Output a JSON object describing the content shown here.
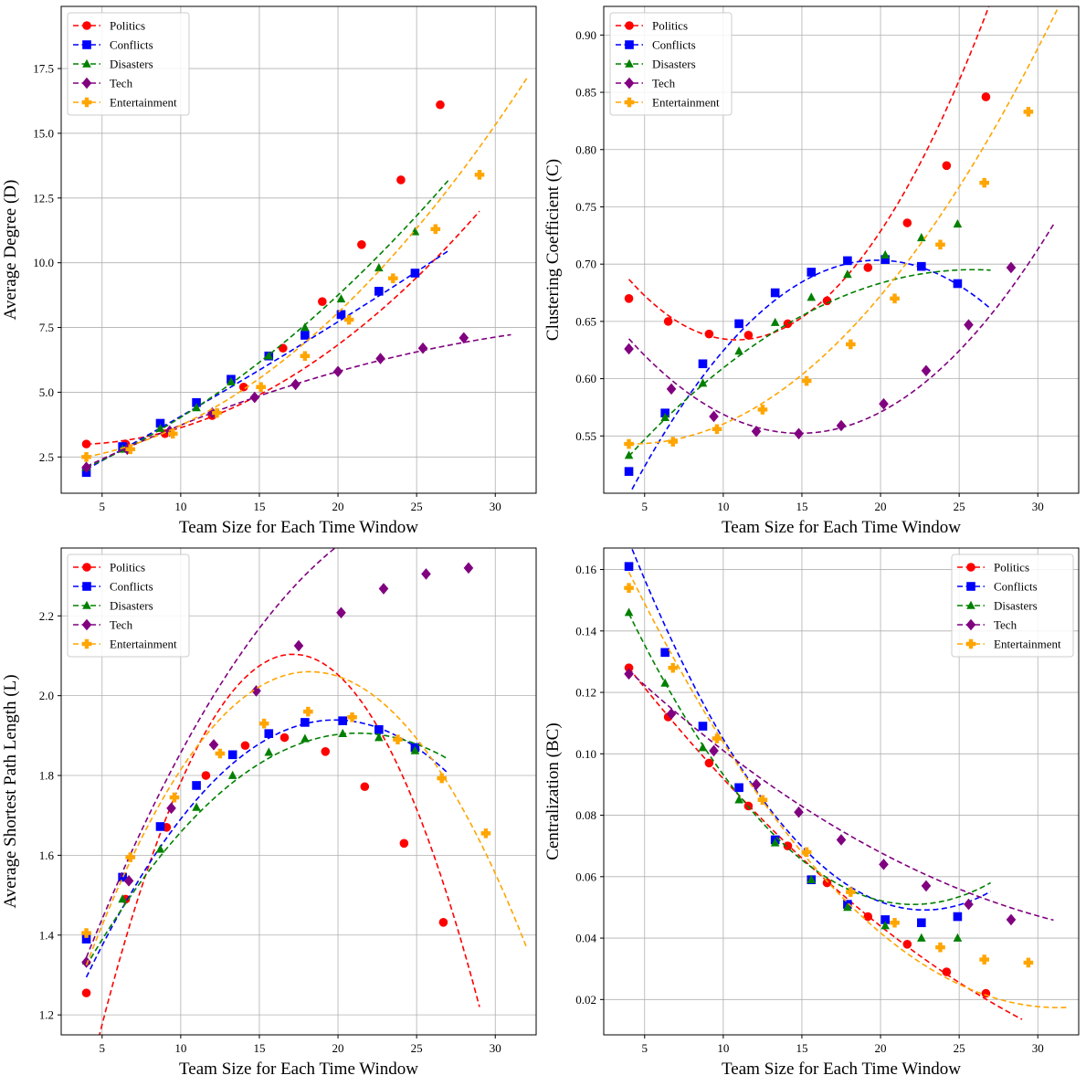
{
  "series_styles": [
    {
      "name": "Politics",
      "color": "#ff0000",
      "marker": "circle"
    },
    {
      "name": "Conflicts",
      "color": "#0000ff",
      "marker": "square"
    },
    {
      "name": "Disasters",
      "color": "#008000",
      "marker": "triangle"
    },
    {
      "name": "Tech",
      "color": "#800080",
      "marker": "diamond"
    },
    {
      "name": "Entertainment",
      "color": "#ffa500",
      "marker": "plus"
    }
  ],
  "chart_data": [
    {
      "type": "line",
      "title": "",
      "xlabel": "Team Size for Each Time Window",
      "ylabel": "Average Degree (D)",
      "xlim": [
        2.4,
        32.6
      ],
      "ylim": [
        1.1,
        19.9
      ],
      "xticks": [
        5,
        10,
        15,
        20,
        25,
        30
      ],
      "yticks": [
        2.5,
        5.0,
        7.5,
        10.0,
        12.5,
        15.0,
        17.5
      ],
      "ytick_labels": [
        "2.5",
        "5.0",
        "7.5",
        "10.0",
        "12.5",
        "15.0",
        "17.5"
      ],
      "legend": "top-left",
      "series": [
        {
          "name": "Politics",
          "x": [
            4,
            6.5,
            9,
            12,
            14,
            16.5,
            19,
            21.5,
            24,
            26.5
          ],
          "y": [
            3.0,
            3.0,
            3.4,
            4.1,
            5.2,
            6.7,
            8.5,
            10.7,
            13.2,
            16.1
          ],
          "fit_x": [
            4,
            29
          ],
          "fit": [
            0.01333,
            -0.08,
            3.1
          ]
        },
        {
          "name": "Conflicts",
          "x": [
            4,
            6.3,
            8.7,
            11,
            13.2,
            15.6,
            17.9,
            20.2,
            22.6,
            24.9
          ],
          "y": [
            1.9,
            2.9,
            3.8,
            4.6,
            5.5,
            6.4,
            7.2,
            8.0,
            8.9,
            9.6
          ],
          "fit_x": [
            4,
            27
          ],
          "fit": [
            0.0015,
            0.32,
            0.72
          ]
        },
        {
          "name": "Disasters",
          "x": [
            4,
            6.3,
            8.7,
            11,
            13.2,
            15.6,
            17.9,
            20.2,
            22.6,
            24.9
          ],
          "y": [
            2.1,
            2.8,
            3.6,
            4.4,
            5.4,
            6.4,
            7.5,
            8.6,
            9.8,
            11.2
          ],
          "fit_x": [
            4,
            27
          ],
          "fit": [
            0.0094,
            0.19,
            1.19
          ]
        },
        {
          "name": "Tech",
          "x": [
            4,
            6.6,
            9.3,
            12,
            14.7,
            17.3,
            20,
            22.7,
            25.4,
            28
          ],
          "y": [
            2.1,
            2.8,
            3.5,
            4.2,
            4.8,
            5.3,
            5.8,
            6.3,
            6.7,
            7.1
          ],
          "fit_x": [
            4,
            31
          ],
          "fit": [
            -0.0037,
            0.318,
            0.92
          ]
        },
        {
          "name": "Entertainment",
          "x": [
            4,
            6.8,
            9.5,
            12.3,
            15.1,
            17.9,
            20.7,
            23.5,
            26.2,
            29
          ],
          "y": [
            2.5,
            2.8,
            3.4,
            4.2,
            5.2,
            6.4,
            7.8,
            9.4,
            11.3,
            13.4
          ],
          "fit_x": [
            4,
            32
          ],
          "fit": [
            0.0145,
            0.0,
            2.27
          ]
        }
      ]
    },
    {
      "type": "line",
      "title": "",
      "xlabel": "Team Size for Each Time Window",
      "ylabel": "Clustering Coefficient (C)",
      "xlim": [
        2.4,
        32.6
      ],
      "ylim": [
        0.5,
        0.925
      ],
      "xticks": [
        5,
        10,
        15,
        20,
        25,
        30
      ],
      "yticks": [
        0.55,
        0.6,
        0.65,
        0.7,
        0.75,
        0.8,
        0.85,
        0.9
      ],
      "ytick_labels": [
        "0.55",
        "0.60",
        "0.65",
        "0.70",
        "0.75",
        "0.80",
        "0.85",
        "0.90"
      ],
      "legend": "top-left",
      "series": [
        {
          "name": "Politics",
          "x": [
            4,
            6.5,
            9.1,
            11.6,
            14.1,
            16.6,
            19.2,
            21.7,
            24.2,
            26.7
          ],
          "y": [
            0.67,
            0.65,
            0.639,
            0.638,
            0.648,
            0.668,
            0.697,
            0.736,
            0.786,
            0.846
          ],
          "fit_x": [
            4,
            29
          ],
          "fit": [
            0.00113,
            -0.0245,
            0.7667
          ]
        },
        {
          "name": "Conflicts",
          "x": [
            4,
            6.3,
            8.7,
            11,
            13.3,
            15.6,
            17.9,
            20.3,
            22.6,
            24.9
          ],
          "y": [
            0.519,
            0.57,
            0.613,
            0.648,
            0.675,
            0.693,
            0.703,
            0.704,
            0.698,
            0.683
          ],
          "fit_x": [
            4.2,
            27
          ],
          "fit": [
            -0.00082,
            0.0325,
            0.3814
          ]
        },
        {
          "name": "Disasters",
          "x": [
            4,
            6.3,
            8.7,
            11,
            13.3,
            15.6,
            17.9,
            20.3,
            22.6,
            24.9
          ],
          "y": [
            0.533,
            0.566,
            0.596,
            0.624,
            0.649,
            0.671,
            0.691,
            0.708,
            0.723,
            0.735
          ],
          "fit_x": [
            4,
            27
          ],
          "fit": [
            -0.00034,
            0.0176,
            0.4674
          ]
        },
        {
          "name": "Tech",
          "x": [
            4,
            6.7,
            9.4,
            12.1,
            14.8,
            17.5,
            20.2,
            22.9,
            25.6,
            28.3
          ],
          "y": [
            0.626,
            0.591,
            0.567,
            0.554,
            0.552,
            0.559,
            0.578,
            0.607,
            0.647,
            0.697
          ],
          "fit_x": [
            4,
            31
          ],
          "fit": [
            0.0007,
            -0.0208,
            0.7068
          ]
        },
        {
          "name": "Entertainment",
          "x": [
            4,
            6.8,
            9.6,
            12.5,
            15.3,
            18.1,
            20.9,
            23.8,
            26.6,
            29.4
          ],
          "y": [
            0.543,
            0.545,
            0.556,
            0.573,
            0.598,
            0.63,
            0.67,
            0.717,
            0.771,
            0.833
          ],
          "fit_x": [
            4,
            32
          ],
          "fit": [
            0.00052,
            -0.0044,
            0.5524
          ]
        }
      ]
    },
    {
      "type": "line",
      "title": "",
      "xlabel": "Team Size for Each Time Window",
      "ylabel": "Average Shortest Path Length (L)",
      "xlim": [
        2.4,
        32.6
      ],
      "ylim": [
        1.15,
        2.37
      ],
      "xticks": [
        5,
        10,
        15,
        20,
        25,
        30
      ],
      "yticks": [
        1.2,
        1.4,
        1.6,
        1.8,
        2.0,
        2.2
      ],
      "ytick_labels": [
        "1.2",
        "1.4",
        "1.6",
        "1.8",
        "2.0",
        "2.2"
      ],
      "legend": "top-left",
      "series": [
        {
          "name": "Politics",
          "x": [
            4,
            6.5,
            9.1,
            11.6,
            14.1,
            16.6,
            19.2,
            21.7,
            24.2,
            26.7
          ],
          "y": [
            1.255,
            1.49,
            1.67,
            1.8,
            1.875,
            1.895,
            1.86,
            1.772,
            1.63,
            1.432
          ],
          "fit_x": [
            4,
            29
          ],
          "fit": [
            -0.00629,
            0.2157,
            0.2546
          ]
        },
        {
          "name": "Conflicts",
          "x": [
            4,
            6.3,
            8.7,
            11,
            13.3,
            15.6,
            17.9,
            20.3,
            22.6,
            24.9
          ],
          "y": [
            1.39,
            1.545,
            1.672,
            1.775,
            1.852,
            1.905,
            1.933,
            1.937,
            1.915,
            1.87
          ],
          "fit_x": [
            4,
            27
          ],
          "fit": [
            -0.00258,
            0.1022,
            0.927
          ]
        },
        {
          "name": "Disasters",
          "x": [
            4,
            6.3,
            8.7,
            11,
            13.3,
            15.6,
            17.9,
            20.3,
            22.6,
            24.9
          ],
          "y": [
            1.335,
            1.49,
            1.615,
            1.72,
            1.8,
            1.858,
            1.892,
            1.905,
            1.895,
            1.862
          ],
          "fit_x": [
            4,
            27
          ],
          "fit": [
            -0.00196,
            0.0833,
            1.021
          ]
        },
        {
          "name": "Tech",
          "x": [
            4,
            6.7,
            9.4,
            12.1,
            14.8,
            17.5,
            20.2,
            22.9,
            25.6,
            28.3
          ],
          "y": [
            1.332,
            1.536,
            1.718,
            1.877,
            2.012,
            2.125,
            2.208,
            2.268,
            2.305,
            2.32
          ],
          "fit_x": [
            4,
            31
          ],
          "fit": [
            -0.0021,
            0.1149,
            0.918
          ]
        },
        {
          "name": "Entertainment",
          "x": [
            4,
            6.8,
            9.6,
            12.5,
            15.3,
            18.1,
            20.9,
            23.8,
            26.6,
            29.4
          ],
          "y": [
            1.405,
            1.595,
            1.745,
            1.855,
            1.93,
            1.96,
            1.946,
            1.89,
            1.793,
            1.655
          ],
          "fit_x": [
            4,
            32
          ],
          "fit": [
            -0.00364,
            0.1326,
            0.8525
          ]
        }
      ]
    },
    {
      "type": "line",
      "title": "",
      "xlabel": "Team Size for Each Time Window",
      "ylabel": "Centralization (BC)",
      "xlim": [
        2.4,
        32.6
      ],
      "ylim": [
        0.0085,
        0.167
      ],
      "xticks": [
        5,
        10,
        15,
        20,
        25,
        30
      ],
      "yticks": [
        0.02,
        0.04,
        0.06,
        0.08,
        0.1,
        0.12,
        0.14,
        0.16
      ],
      "ytick_labels": [
        "0.02",
        "0.04",
        "0.06",
        "0.08",
        "0.10",
        "0.12",
        "0.14",
        "0.16"
      ],
      "legend": "top-right",
      "series": [
        {
          "name": "Politics",
          "x": [
            4,
            6.5,
            9.1,
            11.6,
            14.1,
            16.6,
            19.2,
            21.7,
            24.2,
            26.7
          ],
          "y": [
            0.128,
            0.112,
            0.097,
            0.083,
            0.07,
            0.058,
            0.047,
            0.038,
            0.029,
            0.022
          ],
          "fit_x": [
            4,
            29
          ],
          "fit": [
            7.5e-05,
            -0.00705,
            0.1549
          ]
        },
        {
          "name": "Conflicts",
          "x": [
            4,
            6.3,
            8.7,
            11,
            13.3,
            15.6,
            17.9,
            20.3,
            22.6,
            24.9
          ],
          "y": [
            0.161,
            0.133,
            0.109,
            0.089,
            0.072,
            0.059,
            0.051,
            0.046,
            0.045,
            0.047
          ],
          "fit_x": [
            4,
            27
          ],
          "fit": [
            0.00034,
            -0.0155,
            0.2258
          ]
        },
        {
          "name": "Disasters",
          "x": [
            4,
            6.3,
            8.7,
            11,
            13.3,
            15.6,
            17.9,
            20.3,
            22.6,
            24.9
          ],
          "y": [
            0.146,
            0.123,
            0.102,
            0.085,
            0.071,
            0.059,
            0.05,
            0.044,
            0.04,
            0.04
          ],
          "fit_x": [
            4,
            27
          ],
          "fit": [
            0.00029,
            -0.0128,
            0.1922
          ]
        },
        {
          "name": "Tech",
          "x": [
            4,
            6.7,
            9.4,
            12.1,
            14.8,
            17.5,
            20.2,
            22.9,
            25.6,
            28.3
          ],
          "y": [
            0.126,
            0.113,
            0.101,
            0.09,
            0.081,
            0.072,
            0.064,
            0.057,
            0.051,
            0.046
          ],
          "fit_x": [
            4,
            31
          ],
          "fit": [
            6.27e-05,
            -0.0052,
            0.1468
          ]
        },
        {
          "name": "Entertainment",
          "x": [
            4,
            6.8,
            9.6,
            12.5,
            15.3,
            18.1,
            20.9,
            23.8,
            26.6,
            29.4
          ],
          "y": [
            0.154,
            0.128,
            0.105,
            0.085,
            0.068,
            0.055,
            0.045,
            0.037,
            0.033,
            0.032
          ],
          "fit_x": [
            4,
            32
          ],
          "fit": [
            0.00019,
            -0.0119,
            0.2037
          ]
        }
      ]
    }
  ]
}
